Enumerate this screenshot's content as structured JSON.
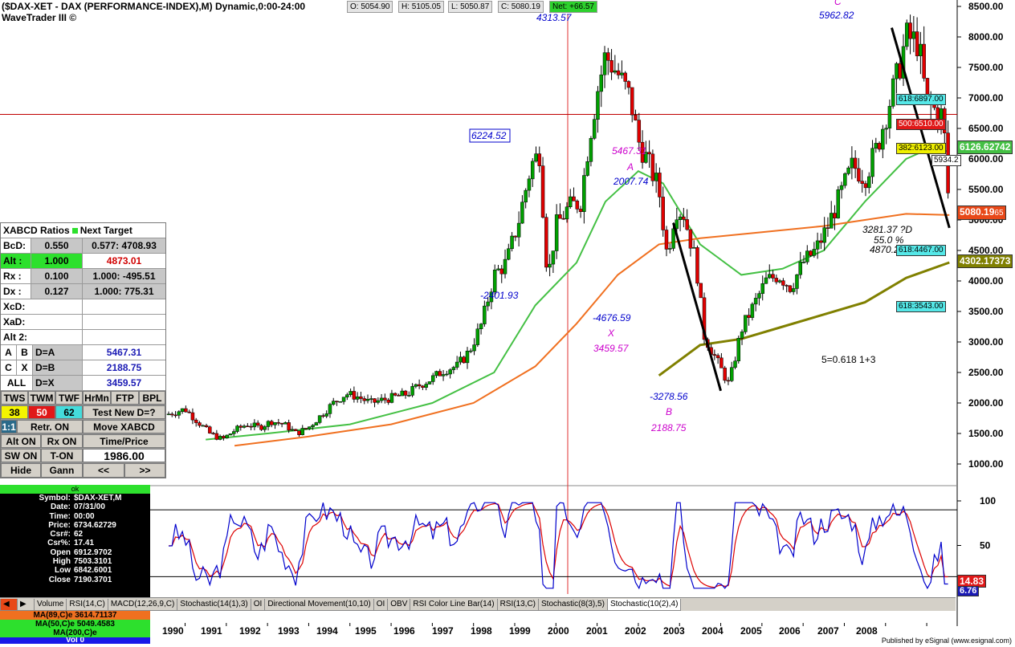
{
  "header": {
    "title": "($DAX-XET - DAX (PERFORMANCE-INDEX),M) Dynamic,0:00-24:00",
    "subtitle": "WaveTrader III ©",
    "open": "O: 5054.90",
    "high": "H: 5105.05",
    "low": "L: 5050.87",
    "close": "C: 5080.19",
    "net": "Net: +66.57"
  },
  "colors": {
    "up": "#00a000",
    "down": "#e00000",
    "ma50": "#44c044",
    "ma89": "#f07020",
    "ma200": "#808000",
    "stoch_k": "#0000cc",
    "stoch_d": "#dd0000",
    "pattern": "#cc00cc",
    "annot": "#0000cc",
    "refline": "#c00000"
  },
  "price_axis_ticks": [
    "8500.00",
    "8000.00",
    "7500.00",
    "7000.00",
    "6500.00",
    "6000.00",
    "5500.00",
    "5000.00",
    "4500.00",
    "4000.00",
    "3500.00",
    "3000.00",
    "2500.00",
    "2000.00",
    "1500.00",
    "1000.00"
  ],
  "price_boxes": {
    "fib_618_6897": "618:6897.00",
    "fib_500_6510": "500:6510.00",
    "fib_382_6123": "382:6123.00",
    "ma50_value": "6126.62742",
    "level_5934": "5934.2",
    "last_price": "5080.19",
    "last_price_suffix": "65",
    "fib_618_4467": "618:4467.00",
    "ma200_value": "4302.17373",
    "fib_618_3543": "618:3543.00"
  },
  "annotations": {
    "a_6224": "6224.52",
    "a_4313": "4313.57",
    "a_5962": "5962.82",
    "a_2401": "-2401.93",
    "a_5467": "5467.31",
    "a_A": "A",
    "a_2007": "2007.74",
    "a_4676": "-4676.59",
    "a_X": "X",
    "a_3459": "3459.57",
    "a_3278": "-3278.56",
    "a_B": "B",
    "a_2188": "2188.75",
    "a_3281": "3281.37 ?D",
    "a_55": "55.0 %",
    "a_4870": "4870.2",
    "a_C": "C",
    "wave_label": "5=0.618 1+3"
  },
  "stoch_axis_ticks": [
    "100",
    "50"
  ],
  "stoch_values": {
    "k_value": "6.76",
    "d_value": "14.83"
  },
  "xabcd": {
    "header_title": "XABCD Ratios",
    "header_next": "Next Target",
    "rows": [
      {
        "k": "BcD:",
        "v": "0.550",
        "t": "0.577: 4708.93"
      },
      {
        "k": "Alt   :",
        "v": "1.000",
        "t": "4873.01"
      },
      {
        "k": "Rx  :",
        "v": "0.100",
        "t": "1.000: -495.51"
      },
      {
        "k": "Dx  :",
        "v": "0.127",
        "t": "1.000: 775.31"
      }
    ],
    "xcd": "XcD:",
    "xad": "XaD:",
    "alt2": "Alt 2:",
    "pairs": [
      {
        "a": "A",
        "b": "B",
        "c": "D=A",
        "v": "5467.31"
      },
      {
        "a": "C",
        "b": "X",
        "c": "D=B",
        "v": "2188.75"
      },
      {
        "a": "ALL",
        "b": "",
        "c": "D=X",
        "v": "3459.57"
      }
    ],
    "tabs": [
      "TWS",
      "TWM",
      "TWF",
      "HrMn",
      "FTP",
      "BPL"
    ],
    "nums": [
      "38",
      "50",
      "62"
    ],
    "test_new": "Test New D=?",
    "ratio": "1:1",
    "retr_on": "Retr. ON",
    "move_xabcd": "Move XABCD",
    "alt_on": "Alt ON",
    "rx_on": "Rx ON",
    "time_price": "Time/Price",
    "sw_on": "SW ON",
    "t_on": "T-ON",
    "price_value": "1986.00",
    "hide": "Hide",
    "gann": "Gann",
    "prev": "<<",
    "next": ">>"
  },
  "data_window": {
    "status": "ok",
    "rows": [
      {
        "k": "Symbol:",
        "v": "$DAX-XET,M"
      },
      {
        "k": "Date:",
        "v": "07/31/00"
      },
      {
        "k": "Time:",
        "v": "00:00"
      },
      {
        "k": "Price:",
        "v": "6734.62729"
      },
      {
        "k": "Csr#:",
        "v": "62"
      },
      {
        "k": "Csr%:",
        "v": "17.41"
      },
      {
        "k": "Open",
        "v": "6912.9702"
      },
      {
        "k": "High",
        "v": "7503.3101"
      },
      {
        "k": "Low",
        "v": "6842.6001"
      },
      {
        "k": "Close",
        "v": "7190.3701"
      }
    ]
  },
  "ma_labels": {
    "ma89": "MA(89,C)e 3614.71137",
    "ma50": "MA(50,C)e 5049.4583",
    "ma200": "MA(200,C)e",
    "vol": "Vol 0"
  },
  "tabs": [
    "Volume",
    "RSI(14,C)",
    "MACD(12,26,9,C)",
    "Stochastic(14(1),3)",
    "OI",
    "Directional Movement(10,10)",
    "OI",
    "OBV",
    "RSI Color Line Bar(14)",
    "RSI(13,C)",
    "Stochastic(8(3),5)",
    "Stochastic(10(2),4)"
  ],
  "active_tab": "Stochastic(10(2),4)",
  "years": [
    "1990",
    "1991",
    "1992",
    "1993",
    "1994",
    "1995",
    "1996",
    "1997",
    "1998",
    "1999",
    "2000",
    "2001",
    "2002",
    "2003",
    "2004",
    "2005",
    "2006",
    "2007",
    "2008"
  ],
  "footer": "Published by eSignal (www.esignal.com)",
  "chart_data": {
    "type": "line",
    "subtype": "candlestick",
    "ylim": [
      1000,
      8500
    ],
    "x_range": [
      "1989",
      "2008.6"
    ],
    "close_series": {
      "x": [
        1989.5,
        1990.0,
        1990.3,
        1990.6,
        1990.9,
        1991.2,
        1991.5,
        1991.8,
        1992.1,
        1992.4,
        1992.7,
        1993.0,
        1993.3,
        1993.6,
        1993.9,
        1994.2,
        1994.5,
        1994.8,
        1995.1,
        1995.4,
        1995.7,
        1996.0,
        1996.3,
        1996.6,
        1996.9,
        1997.2,
        1997.5,
        1997.8,
        1998.1,
        1998.4,
        1998.6,
        1998.8,
        1999.0,
        1999.3,
        1999.6,
        1999.8,
        2000.0,
        2000.2,
        2000.5,
        2000.8,
        2001.0,
        2001.2,
        2001.5,
        2001.7,
        2001.9,
        2002.1,
        2002.4,
        2002.6,
        2002.9,
        2003.2,
        2003.5,
        2003.8,
        2004.1,
        2004.4,
        2004.7,
        2005.0,
        2005.3,
        2005.6,
        2005.9,
        2006.2,
        2006.5,
        2006.8,
        2007.0,
        2007.3,
        2007.5,
        2007.8,
        2008.0,
        2008.2,
        2008.4,
        2008.55
      ],
      "y": [
        1800,
        1900,
        1700,
        1500,
        1400,
        1550,
        1650,
        1600,
        1700,
        1650,
        1500,
        1600,
        1800,
        2000,
        2150,
        2100,
        2000,
        2050,
        2100,
        2150,
        2300,
        2400,
        2550,
        2600,
        2850,
        3300,
        4100,
        4300,
        5000,
        5900,
        6100,
        4000,
        4900,
        5200,
        5300,
        6300,
        7100,
        7700,
        7400,
        7000,
        6300,
        6000,
        5500,
        4400,
        5200,
        5100,
        4300,
        3100,
        2700,
        2300,
        3200,
        3600,
        4000,
        4100,
        3900,
        4300,
        4500,
        4900,
        5400,
        5900,
        5700,
        6200,
        6700,
        7400,
        8000,
        7900,
        6900,
        6800,
        6700,
        5080
      ]
    },
    "series": [
      {
        "name": "MA(50,C)e",
        "x": [
          1990.5,
          1992,
          1994,
          1996,
          1997.5,
          1998.5,
          1999.5,
          2000.2,
          2001,
          2001.6,
          2002.5,
          2003.5,
          2004.5,
          2005.5,
          2006.5,
          2007.5,
          2008,
          2008.55
        ],
        "y": [
          1400,
          1500,
          1650,
          2000,
          2500,
          3600,
          4300,
          5300,
          5800,
          5600,
          4600,
          4100,
          4200,
          4500,
          5300,
          6000,
          6150,
          6126
        ]
      },
      {
        "name": "MA(89,C)e",
        "x": [
          1991.2,
          1993,
          1995,
          1997,
          1998.5,
          1999.5,
          2000.5,
          2001.5,
          2002.5,
          2004,
          2005.5,
          2006.5,
          2007.5,
          2008.55
        ],
        "y": [
          1300,
          1450,
          1650,
          2000,
          2600,
          3300,
          4100,
          4600,
          4700,
          4800,
          4900,
          5000,
          5100,
          5080
        ]
      },
      {
        "name": "MA(200,C)e",
        "x": [
          2001.5,
          2002.5,
          2003.5,
          2004.5,
          2005.5,
          2006.5,
          2007.5,
          2008.55
        ],
        "y": [
          2450,
          2950,
          3050,
          3250,
          3450,
          3650,
          4050,
          4302
        ]
      }
    ],
    "xabcd_points": {
      "X": 3459.57,
      "A": 5467.31,
      "B": 2188.75,
      "C": 8150,
      "D": 3281.37
    },
    "reference_lines": [
      6730
    ],
    "stochastic": {
      "ylim": [
        0,
        110
      ],
      "levels": [
        90,
        15
      ],
      "k_last": 6.76,
      "d_last": 14.83
    }
  }
}
